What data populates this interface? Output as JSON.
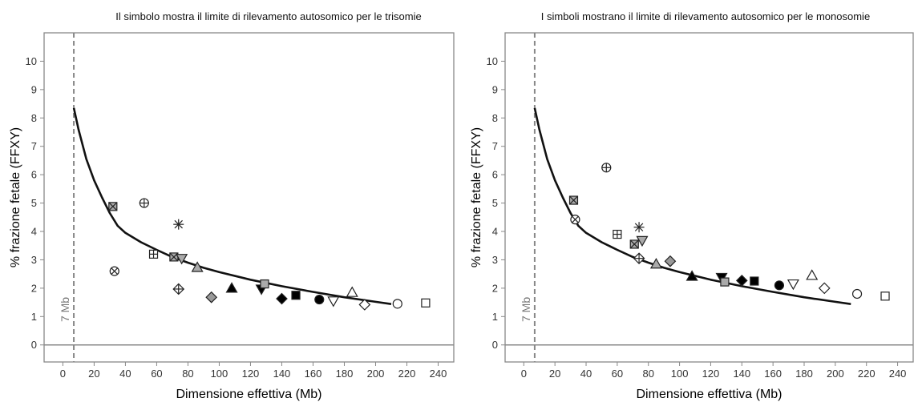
{
  "chart_data": [
    {
      "type": "scatter",
      "title": "Il simbolo mostra il limite di rilevamento autosomico per le trisomie",
      "xlabel": "Dimensione effettiva (Mb)",
      "ylabel": "% frazione fetale (FFXY)",
      "xlim": [
        -12,
        250
      ],
      "ylim": [
        -0.6,
        11
      ],
      "xticks": [
        "0",
        "20",
        "40",
        "60",
        "80",
        "100",
        "120",
        "140",
        "160",
        "180",
        "200",
        "220",
        "240"
      ],
      "yticks": [
        "0",
        "1",
        "2",
        "3",
        "4",
        "5",
        "6",
        "7",
        "8",
        "9",
        "10"
      ],
      "vline": {
        "x": 7,
        "label": "7 Mb"
      },
      "hline": 0,
      "curve": [
        [
          7,
          8.35
        ],
        [
          10,
          7.6
        ],
        [
          15,
          6.55
        ],
        [
          20,
          5.8
        ],
        [
          25,
          5.2
        ],
        [
          30,
          4.65
        ],
        [
          35,
          4.2
        ],
        [
          40,
          3.95
        ],
        [
          50,
          3.62
        ],
        [
          60,
          3.35
        ],
        [
          70,
          3.1
        ],
        [
          80,
          2.9
        ],
        [
          90,
          2.72
        ],
        [
          100,
          2.57
        ],
        [
          120,
          2.3
        ],
        [
          140,
          2.07
        ],
        [
          160,
          1.87
        ],
        [
          180,
          1.68
        ],
        [
          200,
          1.52
        ],
        [
          210,
          1.44
        ]
      ],
      "points": [
        {
          "x": 32,
          "y": 4.88,
          "marker": "square-x",
          "color": "#aaaaaa"
        },
        {
          "x": 33,
          "y": 2.6,
          "marker": "circle-x",
          "color": "#ffffff"
        },
        {
          "x": 52,
          "y": 5.0,
          "marker": "circle-plus",
          "color": "#ffffff"
        },
        {
          "x": 58,
          "y": 3.2,
          "marker": "square-plus",
          "color": "#ffffff"
        },
        {
          "x": 71,
          "y": 3.1,
          "marker": "square-x",
          "color": "#aaaaaa"
        },
        {
          "x": 74,
          "y": 4.25,
          "marker": "asterisk",
          "color": "#000000"
        },
        {
          "x": 74,
          "y": 1.97,
          "marker": "diamond-plus",
          "color": "#ffffff"
        },
        {
          "x": 76,
          "y": 3.05,
          "marker": "triangle-down",
          "color": "#aaaaaa"
        },
        {
          "x": 86,
          "y": 2.73,
          "marker": "triangle-up",
          "color": "#aaaaaa"
        },
        {
          "x": 95,
          "y": 1.68,
          "marker": "diamond",
          "color": "#999999"
        },
        {
          "x": 108,
          "y": 2.0,
          "marker": "triangle-up",
          "color": "#000000"
        },
        {
          "x": 127,
          "y": 1.97,
          "marker": "triangle-down",
          "color": "#000000"
        },
        {
          "x": 129,
          "y": 2.15,
          "marker": "square",
          "color": "#aaaaaa"
        },
        {
          "x": 140,
          "y": 1.63,
          "marker": "diamond",
          "color": "#000000"
        },
        {
          "x": 149,
          "y": 1.75,
          "marker": "square",
          "color": "#000000"
        },
        {
          "x": 164,
          "y": 1.6,
          "marker": "circle",
          "color": "#000000"
        },
        {
          "x": 173,
          "y": 1.55,
          "marker": "triangle-down",
          "color": "#ffffff"
        },
        {
          "x": 185,
          "y": 1.85,
          "marker": "triangle-up",
          "color": "#ffffff"
        },
        {
          "x": 193,
          "y": 1.42,
          "marker": "diamond",
          "color": "#ffffff"
        },
        {
          "x": 214,
          "y": 1.45,
          "marker": "circle",
          "color": "#ffffff"
        },
        {
          "x": 232,
          "y": 1.48,
          "marker": "square",
          "color": "#ffffff"
        }
      ]
    },
    {
      "type": "scatter",
      "title": "I simboli mostrano il limite di rilevamento autosomico per le monosomie",
      "xlabel": "Dimensione effettiva (Mb)",
      "ylabel": "% frazione fetale (FFXY)",
      "xlim": [
        -12,
        250
      ],
      "ylim": [
        -0.6,
        11
      ],
      "xticks": [
        "0",
        "20",
        "40",
        "60",
        "80",
        "100",
        "120",
        "140",
        "160",
        "180",
        "200",
        "220",
        "240"
      ],
      "yticks": [
        "0",
        "1",
        "2",
        "3",
        "4",
        "5",
        "6",
        "7",
        "8",
        "9",
        "10"
      ],
      "vline": {
        "x": 7,
        "label": "7 Mb"
      },
      "hline": 0,
      "curve": [
        [
          7,
          8.35
        ],
        [
          10,
          7.6
        ],
        [
          15,
          6.55
        ],
        [
          20,
          5.8
        ],
        [
          25,
          5.2
        ],
        [
          30,
          4.65
        ],
        [
          35,
          4.2
        ],
        [
          40,
          3.95
        ],
        [
          50,
          3.62
        ],
        [
          60,
          3.35
        ],
        [
          70,
          3.1
        ],
        [
          80,
          2.9
        ],
        [
          90,
          2.72
        ],
        [
          100,
          2.57
        ],
        [
          120,
          2.3
        ],
        [
          140,
          2.07
        ],
        [
          160,
          1.87
        ],
        [
          180,
          1.68
        ],
        [
          200,
          1.52
        ],
        [
          210,
          1.44
        ]
      ],
      "points": [
        {
          "x": 32,
          "y": 5.1,
          "marker": "square-x",
          "color": "#aaaaaa"
        },
        {
          "x": 33,
          "y": 4.42,
          "marker": "circle-x",
          "color": "#ffffff"
        },
        {
          "x": 53,
          "y": 6.25,
          "marker": "circle-plus",
          "color": "#ffffff"
        },
        {
          "x": 60,
          "y": 3.9,
          "marker": "square-plus",
          "color": "#ffffff"
        },
        {
          "x": 71,
          "y": 3.55,
          "marker": "square-x",
          "color": "#aaaaaa"
        },
        {
          "x": 74,
          "y": 4.15,
          "marker": "asterisk",
          "color": "#000000"
        },
        {
          "x": 74,
          "y": 3.05,
          "marker": "diamond-plus",
          "color": "#ffffff"
        },
        {
          "x": 76,
          "y": 3.68,
          "marker": "triangle-down",
          "color": "#aaaaaa"
        },
        {
          "x": 85,
          "y": 2.85,
          "marker": "triangle-up",
          "color": "#aaaaaa"
        },
        {
          "x": 94,
          "y": 2.95,
          "marker": "diamond",
          "color": "#999999"
        },
        {
          "x": 108,
          "y": 2.42,
          "marker": "triangle-up",
          "color": "#000000"
        },
        {
          "x": 127,
          "y": 2.38,
          "marker": "triangle-down",
          "color": "#000000"
        },
        {
          "x": 129,
          "y": 2.22,
          "marker": "square",
          "color": "#aaaaaa"
        },
        {
          "x": 140,
          "y": 2.27,
          "marker": "diamond",
          "color": "#000000"
        },
        {
          "x": 148,
          "y": 2.25,
          "marker": "square",
          "color": "#000000"
        },
        {
          "x": 164,
          "y": 2.1,
          "marker": "circle",
          "color": "#000000"
        },
        {
          "x": 173,
          "y": 2.15,
          "marker": "triangle-down",
          "color": "#ffffff"
        },
        {
          "x": 185,
          "y": 2.45,
          "marker": "triangle-up",
          "color": "#ffffff"
        },
        {
          "x": 193,
          "y": 2.0,
          "marker": "diamond",
          "color": "#ffffff"
        },
        {
          "x": 214,
          "y": 1.8,
          "marker": "circle",
          "color": "#ffffff"
        },
        {
          "x": 232,
          "y": 1.72,
          "marker": "square",
          "color": "#ffffff"
        }
      ]
    }
  ]
}
